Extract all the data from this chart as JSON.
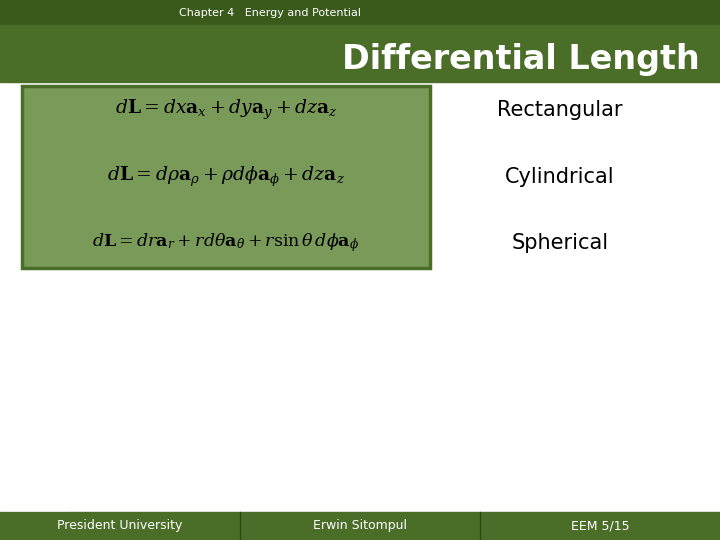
{
  "bg_color": "#ffffff",
  "header_dark_green": "#3a5a1c",
  "header_light_green": "#4a6e28",
  "footer_green": "#4a6e28",
  "box_bg": "#7a9a5a",
  "box_border": "#4a6e28",
  "title_top": "Chapter 4   Energy and Potential",
  "title_main": "Differential Length",
  "label_rectangular": "Rectangular",
  "label_cylindrical": "Cylindrical",
  "label_spherical": "Spherical",
  "footer_left": "President University",
  "footer_mid": "Erwin Sitompul",
  "footer_right": "EEM 5/15",
  "eq1": "d\\mathbf{L} = dx\\mathbf{a}_x + dy\\mathbf{a}_y + dz\\mathbf{a}_z",
  "eq2": "d\\mathbf{L} = d\\rho\\mathbf{a}_\\rho + \\rho d\\phi\\mathbf{a}_\\phi + dz\\mathbf{a}_z",
  "eq3": "d\\mathbf{L} = dr\\mathbf{a}_r + rd\\theta\\mathbf{a}_\\theta + r\\sin\\theta\\, d\\phi\\mathbf{a}_\\phi"
}
